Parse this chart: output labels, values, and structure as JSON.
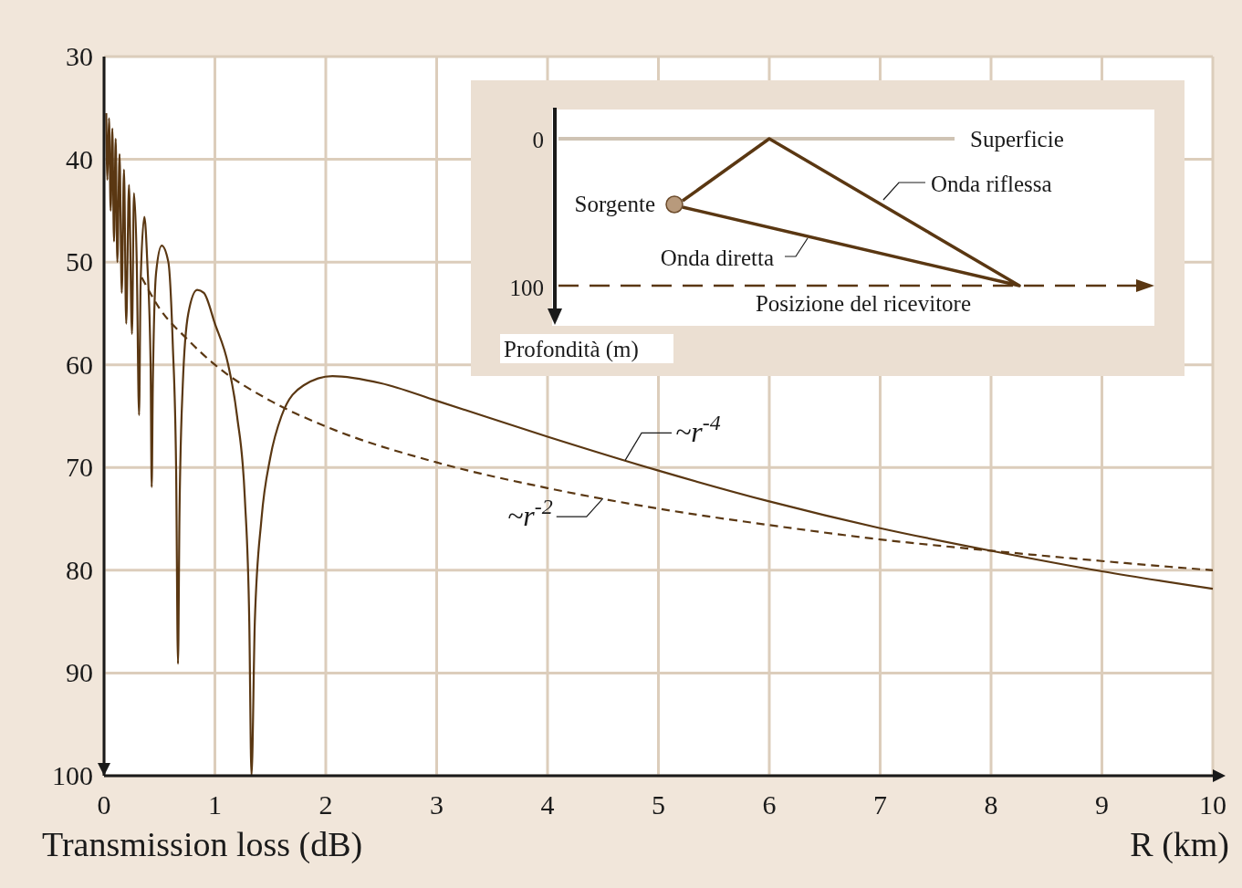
{
  "chart_data": {
    "type": "line",
    "xlabel": "R (km)",
    "ylabel": "Transmission loss (dB)",
    "xlim": [
      0,
      10
    ],
    "xticks": [
      0,
      1,
      2,
      3,
      4,
      5,
      6,
      7,
      8,
      9,
      10
    ],
    "ylim": [
      100,
      30
    ],
    "yticks": [
      30,
      40,
      50,
      60,
      70,
      80,
      90,
      100
    ],
    "grid": true,
    "series": [
      {
        "color": "#5a3712",
        "line_style": "solid",
        "x": [
          0.02,
          0.03,
          0.045,
          0.06,
          0.075,
          0.09,
          0.105,
          0.12,
          0.14,
          0.16,
          0.18,
          0.2,
          0.225,
          0.252,
          0.27,
          0.295,
          0.316,
          0.33,
          0.364,
          0.39,
          0.42,
          0.43,
          0.44,
          0.47,
          0.52,
          0.58,
          0.62,
          0.65,
          0.667,
          0.68,
          0.71,
          0.76,
          0.84,
          0.9,
          1.0,
          1.12,
          1.2,
          1.27,
          1.31,
          1.33,
          1.36,
          1.42,
          1.5,
          1.6,
          1.8,
          2.06,
          2.5,
          3,
          4,
          5,
          6,
          7,
          8,
          9,
          10
        ],
        "values": [
          35.5,
          42,
          36,
          45,
          37,
          48,
          38,
          50,
          39.5,
          53,
          41,
          56,
          42.5,
          57,
          43.3,
          50,
          64.9,
          52,
          45.6,
          50,
          60,
          71.9,
          62,
          51,
          48.4,
          50,
          58,
          70,
          89.1,
          75,
          62,
          55,
          52.7,
          53,
          56,
          60,
          65,
          73,
          85,
          100,
          85,
          75,
          69,
          65,
          62,
          61.1,
          61.8,
          63.5,
          67,
          70.3,
          73.3,
          75.9,
          78.1,
          80.1,
          81.8
        ]
      },
      {
        "color": "#5a3712",
        "line_style": "dashed",
        "x": [
          0.34,
          0.5,
          0.75,
          1,
          1.5,
          2,
          3,
          4,
          5,
          6,
          7,
          8,
          9,
          10
        ],
        "values": [
          51.5,
          54.5,
          57.5,
          60,
          63.5,
          66,
          69.5,
          72,
          74,
          75.6,
          77,
          78.1,
          79.1,
          80
        ]
      }
    ],
    "annotations": [
      {
        "text": "~r$^{-4}$",
        "x": 4.7,
        "y": 69.3
      },
      {
        "text": "~r$^{-2}$",
        "x": 4.5,
        "y": 73
      },
      "0",
      "100",
      "Superficie",
      "Onda riflessa",
      "Sorgente",
      "Onda diretta",
      "Posizione del ricevitore",
      "Profondità (m)"
    ]
  }
}
